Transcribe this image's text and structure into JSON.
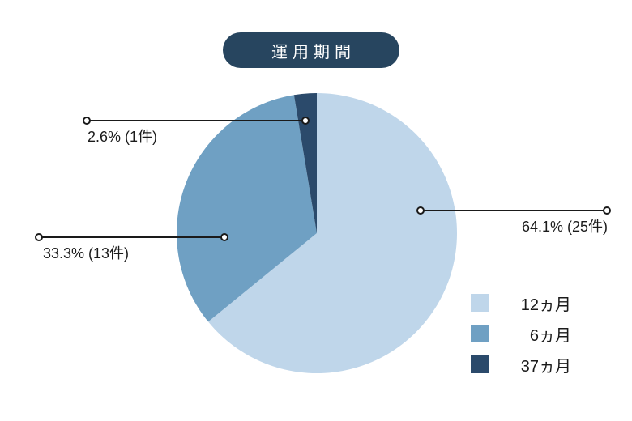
{
  "title": "運用期間",
  "colors": {
    "badge_background": "#27455F",
    "badge_text": "#FFFFFF",
    "leader_line": "#1A1A1A",
    "label_text": "#1B1B1B",
    "background": "#FFFFFF"
  },
  "chart_data": {
    "type": "pie",
    "title": "運用期間",
    "start_angle_deg": 0,
    "direction": "clockwise",
    "legend_position": "bottom-right",
    "slices": [
      {
        "label": "12ヵ月",
        "percent": 64.1,
        "count": 25,
        "callout": "64.1% (25件)",
        "color": "#BFD6EA"
      },
      {
        "label": "6ヵ月",
        "percent": 33.3,
        "count": 13,
        "callout": "33.3% (13件)",
        "color": "#6FA0C3"
      },
      {
        "label": "37ヵ月",
        "percent": 2.6,
        "count": 1,
        "callout": "2.6% (1件)",
        "color": "#2B4A6B"
      }
    ]
  }
}
